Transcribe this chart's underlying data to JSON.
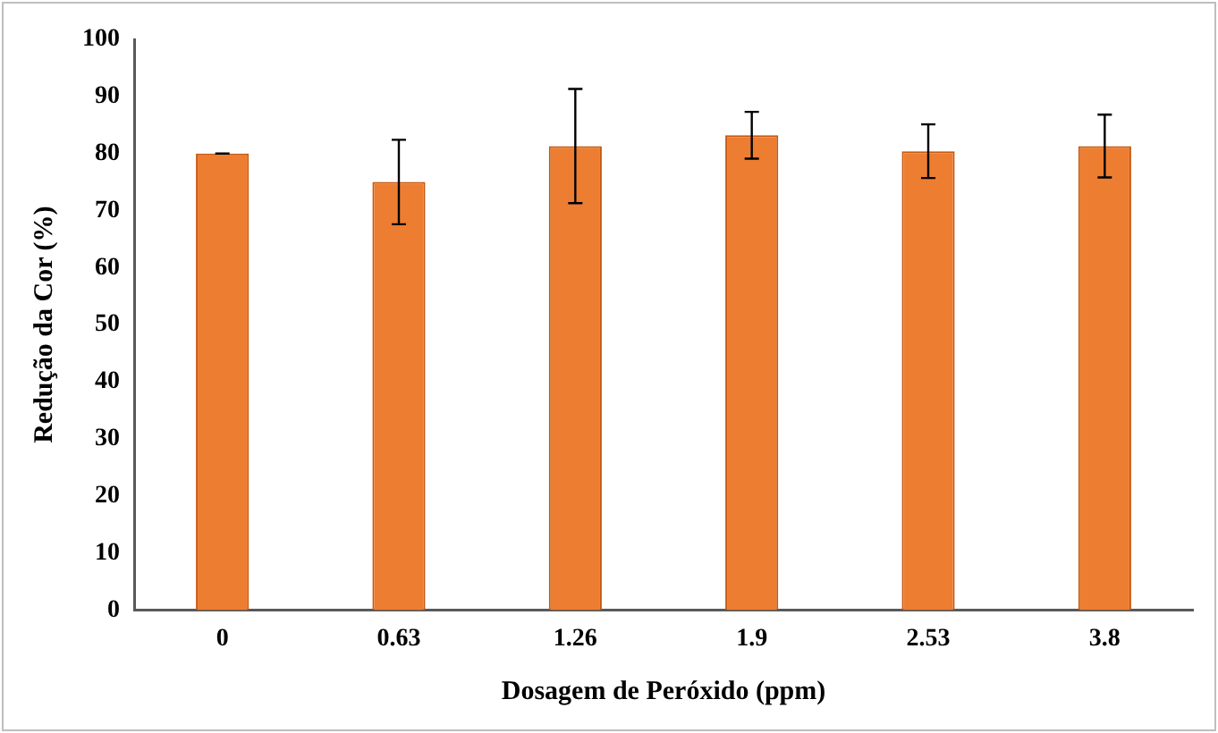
{
  "chart_data": {
    "type": "bar",
    "xlabel": "Dosagem de Peróxido (ppm)",
    "ylabel": "Redução da Cor (%)",
    "categories": [
      "0",
      "0.63",
      "1.26",
      "1.9",
      "2.53",
      "3.8"
    ],
    "values": [
      80,
      75,
      81.3,
      83.2,
      80.4,
      81.3
    ],
    "errors": [
      0,
      7.4,
      10,
      4.1,
      4.7,
      5.5
    ],
    "color": "#ed7d31",
    "ylim": [
      0,
      100
    ],
    "yticks": [
      0,
      10,
      20,
      30,
      40,
      50,
      60,
      70,
      80,
      90,
      100
    ],
    "grid": false,
    "legend": false
  }
}
